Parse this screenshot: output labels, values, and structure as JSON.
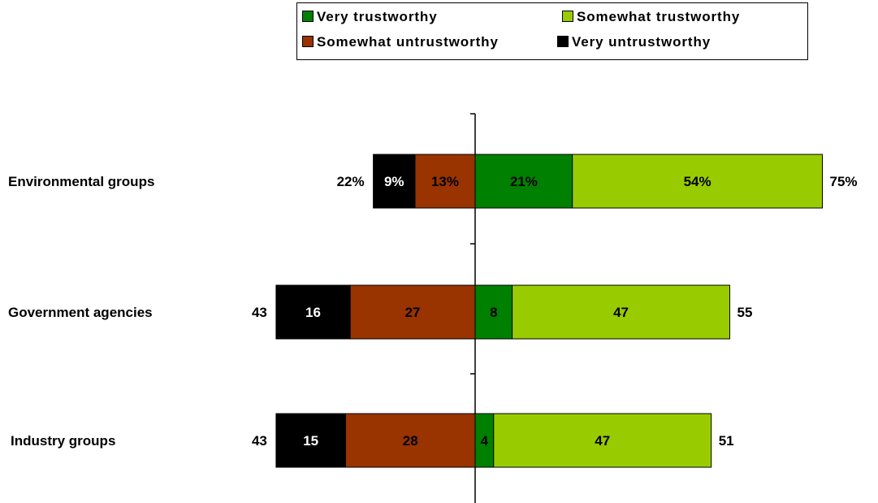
{
  "chart_data": {
    "type": "bar",
    "orientation": "horizontal",
    "stacked": "diverging",
    "categories": [
      "Environmental groups",
      "Government agencies",
      "Industry groups"
    ],
    "series": [
      {
        "name": "Very trustworthy",
        "color": "#008000",
        "values": [
          21,
          8,
          4
        ],
        "value_labels": [
          "21%",
          "8",
          "4"
        ]
      },
      {
        "name": "Somewhat trustworthy",
        "color": "#99cc00",
        "values": [
          54,
          47,
          47
        ],
        "value_labels": [
          "54%",
          "47",
          "47"
        ]
      },
      {
        "name": "Somewhat untrustworthy",
        "color": "#993300",
        "values": [
          13,
          27,
          28
        ],
        "value_labels": [
          "13%",
          "27",
          "28"
        ]
      },
      {
        "name": "Very untrustworthy",
        "color": "#000000",
        "values": [
          9,
          16,
          15
        ],
        "value_labels": [
          "9%",
          "16",
          "15"
        ]
      }
    ],
    "positive_totals": [
      "75%",
      "55",
      "51"
    ],
    "negative_totals": [
      "22%",
      "43",
      "43"
    ],
    "legend_position": "top-right",
    "grid": false
  }
}
